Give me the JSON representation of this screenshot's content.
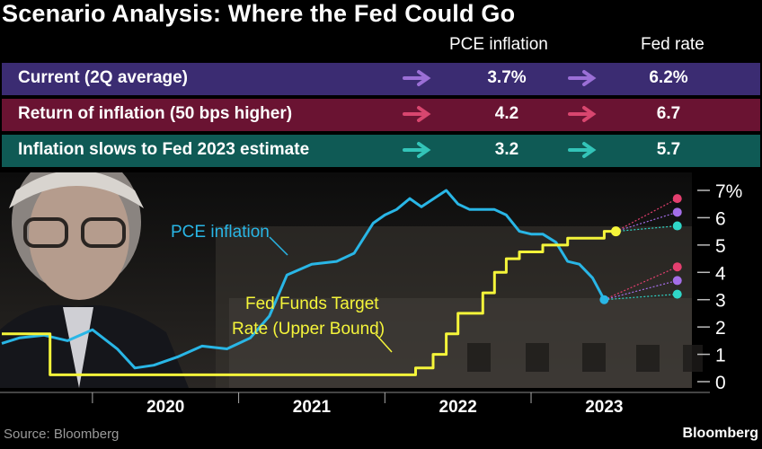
{
  "title": "Scenario Analysis: Where the Fed Could Go",
  "table": {
    "col_pce": "PCE inflation",
    "col_fed": "Fed rate",
    "rows": [
      {
        "label": "Current (2Q average)",
        "pce": "3.7%",
        "fed": "6.2%",
        "bg": "#3b2c72",
        "arrow": "#9b6fd6"
      },
      {
        "label": "Return of inflation (50 bps higher)",
        "pce": "4.2",
        "fed": "6.7",
        "bg": "#6a1332",
        "arrow": "#d8466f"
      },
      {
        "label": "Inflation slows to Fed 2023 estimate",
        "pce": "3.2",
        "fed": "5.7",
        "bg": "#0f5a55",
        "arrow": "#33c4b8"
      }
    ]
  },
  "chart_data": {
    "type": "line",
    "x_ticks": [
      "2020",
      "2021",
      "2022",
      "2023"
    ],
    "x_range": [
      2019.38,
      2024.1
    ],
    "ylim": [
      0,
      7
    ],
    "y_ticks": [
      "0",
      "1",
      "2",
      "3",
      "4",
      "5",
      "6",
      "7%"
    ],
    "series": [
      {
        "name": "PCE inflation",
        "color": "#29b6e6",
        "points": [
          [
            2019.38,
            1.4
          ],
          [
            2019.5,
            1.6
          ],
          [
            2019.67,
            1.7
          ],
          [
            2019.83,
            1.5
          ],
          [
            2020.0,
            1.9
          ],
          [
            2020.17,
            1.2
          ],
          [
            2020.29,
            0.5
          ],
          [
            2020.42,
            0.6
          ],
          [
            2020.58,
            0.9
          ],
          [
            2020.75,
            1.3
          ],
          [
            2020.92,
            1.2
          ],
          [
            2021.08,
            1.6
          ],
          [
            2021.21,
            2.4
          ],
          [
            2021.33,
            3.9
          ],
          [
            2021.5,
            4.3
          ],
          [
            2021.67,
            4.4
          ],
          [
            2021.79,
            4.7
          ],
          [
            2021.92,
            5.8
          ],
          [
            2022.0,
            6.1
          ],
          [
            2022.08,
            6.3
          ],
          [
            2022.17,
            6.7
          ],
          [
            2022.25,
            6.4
          ],
          [
            2022.42,
            7.0
          ],
          [
            2022.5,
            6.5
          ],
          [
            2022.58,
            6.3
          ],
          [
            2022.75,
            6.3
          ],
          [
            2022.83,
            6.1
          ],
          [
            2022.92,
            5.5
          ],
          [
            2023.0,
            5.4
          ],
          [
            2023.08,
            5.4
          ],
          [
            2023.17,
            5.1
          ],
          [
            2023.25,
            4.4
          ],
          [
            2023.33,
            4.3
          ],
          [
            2023.42,
            3.8
          ],
          [
            2023.5,
            3.0
          ]
        ]
      },
      {
        "name": "Fed Funds Target Rate (Upper Bound)",
        "color": "#f5f53a",
        "points": [
          [
            2019.38,
            1.75
          ],
          [
            2019.71,
            1.75
          ],
          [
            2019.71,
            0.25
          ],
          [
            2022.21,
            0.25
          ],
          [
            2022.21,
            0.5
          ],
          [
            2022.33,
            0.5
          ],
          [
            2022.33,
            1.0
          ],
          [
            2022.42,
            1.0
          ],
          [
            2022.42,
            1.75
          ],
          [
            2022.5,
            1.75
          ],
          [
            2022.5,
            2.5
          ],
          [
            2022.67,
            2.5
          ],
          [
            2022.67,
            3.25
          ],
          [
            2022.75,
            3.25
          ],
          [
            2022.75,
            4.0
          ],
          [
            2022.83,
            4.0
          ],
          [
            2022.83,
            4.5
          ],
          [
            2022.92,
            4.5
          ],
          [
            2022.92,
            4.75
          ],
          [
            2023.08,
            4.75
          ],
          [
            2023.08,
            5.0
          ],
          [
            2023.25,
            5.0
          ],
          [
            2023.25,
            5.25
          ],
          [
            2023.5,
            5.25
          ],
          [
            2023.5,
            5.5
          ],
          [
            2023.58,
            5.5
          ]
        ]
      }
    ],
    "scenarios": [
      {
        "name": "Return of inflation",
        "color": "#e43f6f",
        "pce": 4.2,
        "fed": 6.7
      },
      {
        "name": "Current (2Q average)",
        "color": "#a46ee8",
        "pce": 3.7,
        "fed": 6.2
      },
      {
        "name": "Inflation slows",
        "color": "#2fd6c8",
        "pce": 3.2,
        "fed": 5.7
      }
    ],
    "scenario_start": {
      "pce_x": 2023.5,
      "pce_y": 3.0,
      "fed_x": 2023.58,
      "fed_y": 5.5
    },
    "scenario_end_x": 2024.0,
    "labels": {
      "pce": "PCE inflation",
      "fed_line1": "Fed Funds Target",
      "fed_line2": "Rate (Upper Bound)"
    }
  },
  "footer": {
    "source": "Source: Bloomberg",
    "brand": "Bloomberg"
  }
}
